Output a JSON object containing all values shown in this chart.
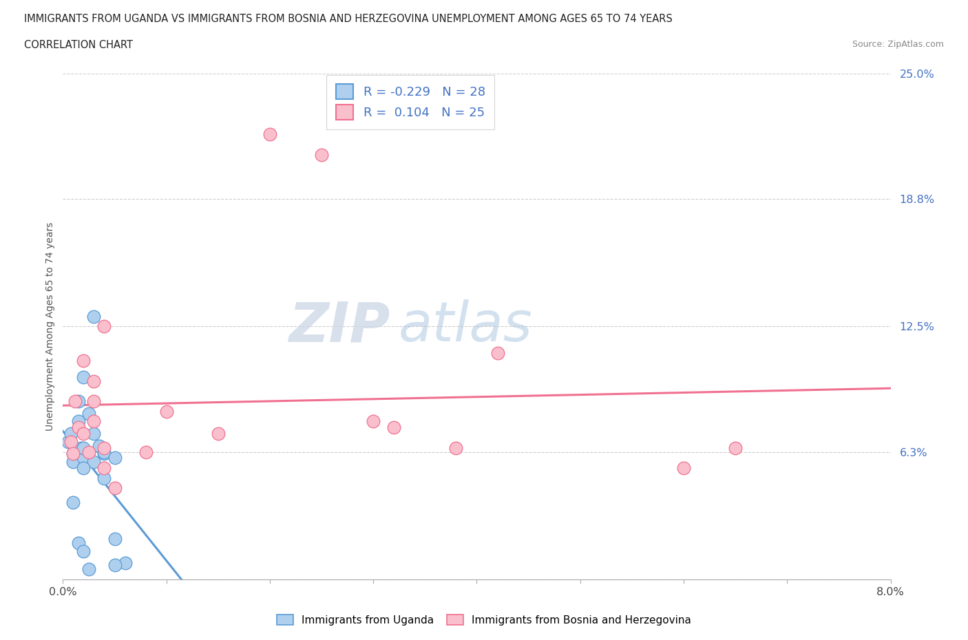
{
  "title_line1": "IMMIGRANTS FROM UGANDA VS IMMIGRANTS FROM BOSNIA AND HERZEGOVINA UNEMPLOYMENT AMONG AGES 65 TO 74 YEARS",
  "title_line2": "CORRELATION CHART",
  "source": "Source: ZipAtlas.com",
  "ylabel": "Unemployment Among Ages 65 to 74 years",
  "xlim": [
    0.0,
    0.08
  ],
  "ylim": [
    0.0,
    0.25
  ],
  "ytick_positions": [
    0.0,
    0.063,
    0.125,
    0.188,
    0.25
  ],
  "yticklabels": [
    "",
    "6.3%",
    "12.5%",
    "18.8%",
    "25.0%"
  ],
  "uganda_color": "#5b9bd5",
  "uganda_face": "#aed0ee",
  "bosnia_color": "#f07090",
  "bosnia_face": "#f9bfcc",
  "legend_uganda_label": "Immigrants from Uganda",
  "legend_bosnia_label": "Immigrants from Bosnia and Herzegovina",
  "R_uganda": -0.229,
  "N_uganda": 28,
  "R_bosnia": 0.104,
  "N_bosnia": 25,
  "watermark_ZIP": "ZIP",
  "watermark_atlas": "atlas",
  "uganda_x": [
    0.0005,
    0.001,
    0.0008,
    0.0015,
    0.001,
    0.0012,
    0.0018,
    0.002,
    0.0015,
    0.002,
    0.0025,
    0.002,
    0.003,
    0.003,
    0.0035,
    0.004,
    0.003,
    0.004,
    0.002,
    0.001,
    0.0015,
    0.002,
    0.0025,
    0.005,
    0.004,
    0.005,
    0.006,
    0.005
  ],
  "uganda_y": [
    0.068,
    0.062,
    0.072,
    0.078,
    0.058,
    0.063,
    0.065,
    0.06,
    0.088,
    0.1,
    0.082,
    0.065,
    0.058,
    0.072,
    0.066,
    0.062,
    0.13,
    0.063,
    0.055,
    0.038,
    0.018,
    0.014,
    0.005,
    0.06,
    0.05,
    0.02,
    0.008,
    0.007
  ],
  "bosnia_x": [
    0.0008,
    0.001,
    0.0015,
    0.0012,
    0.002,
    0.0025,
    0.002,
    0.003,
    0.003,
    0.003,
    0.004,
    0.004,
    0.005,
    0.004,
    0.008,
    0.01,
    0.015,
    0.02,
    0.025,
    0.03,
    0.032,
    0.038,
    0.042,
    0.065,
    0.06
  ],
  "bosnia_y": [
    0.068,
    0.062,
    0.075,
    0.088,
    0.072,
    0.063,
    0.108,
    0.098,
    0.088,
    0.078,
    0.065,
    0.055,
    0.045,
    0.125,
    0.063,
    0.083,
    0.072,
    0.22,
    0.21,
    0.078,
    0.075,
    0.065,
    0.112,
    0.065,
    0.055
  ]
}
